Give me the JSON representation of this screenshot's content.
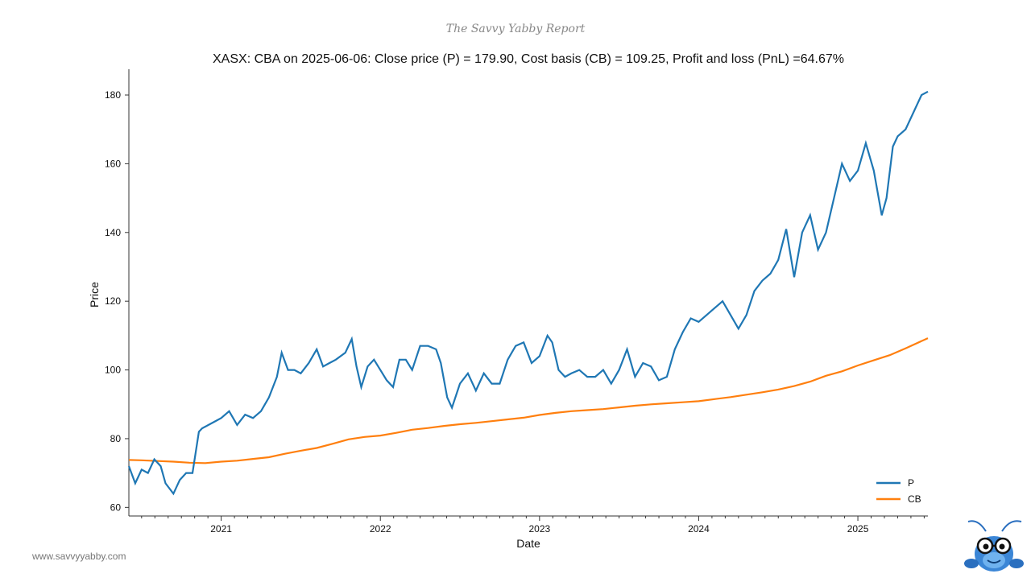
{
  "brand": {
    "title": "The Savvy Yabby Report"
  },
  "footer": {
    "url": "www.savvyyabby.com"
  },
  "colors": {
    "price": "#1f77b4",
    "cost_basis": "#ff7f0e",
    "axis": "#333333"
  },
  "icons": {
    "mascot": "yabby-mascot-icon"
  },
  "chart_data": {
    "type": "line",
    "title": "XASX: CBA on 2025-06-06: Close price (P) = 179.90, Cost basis (CB) = 109.25, Profit and loss (PnL) =64.67%",
    "xlabel": "Date",
    "ylabel": "Price",
    "xlim": [
      2020.42,
      2025.44
    ],
    "ylim": [
      57.5,
      187.5
    ],
    "yticks": [
      60,
      80,
      100,
      120,
      140,
      160,
      180
    ],
    "xticks": [
      {
        "value": 2021.0,
        "label": "2021"
      },
      {
        "value": 2022.0,
        "label": "2022"
      },
      {
        "value": 2023.0,
        "label": "2023"
      },
      {
        "value": 2024.0,
        "label": "2024"
      },
      {
        "value": 2025.0,
        "label": "2025"
      }
    ],
    "legend": {
      "position": "bottom-right"
    },
    "series": [
      {
        "name": "P",
        "x": [
          2020.42,
          2020.46,
          2020.5,
          2020.54,
          2020.58,
          2020.62,
          2020.65,
          2020.7,
          2020.74,
          2020.78,
          2020.82,
          2020.86,
          2020.88,
          2020.92,
          2020.96,
          2021.0,
          2021.05,
          2021.1,
          2021.15,
          2021.2,
          2021.25,
          2021.3,
          2021.35,
          2021.38,
          2021.42,
          2021.46,
          2021.5,
          2021.55,
          2021.6,
          2021.64,
          2021.68,
          2021.72,
          2021.78,
          2021.82,
          2021.85,
          2021.88,
          2021.92,
          2021.96,
          2022.0,
          2022.04,
          2022.08,
          2022.12,
          2022.16,
          2022.2,
          2022.25,
          2022.3,
          2022.35,
          2022.38,
          2022.42,
          2022.45,
          2022.5,
          2022.55,
          2022.6,
          2022.65,
          2022.7,
          2022.75,
          2022.8,
          2022.85,
          2022.9,
          2022.95,
          2023.0,
          2023.05,
          2023.08,
          2023.12,
          2023.16,
          2023.2,
          2023.25,
          2023.3,
          2023.35,
          2023.4,
          2023.45,
          2023.5,
          2023.55,
          2023.6,
          2023.65,
          2023.7,
          2023.75,
          2023.8,
          2023.85,
          2023.9,
          2023.95,
          2024.0,
          2024.05,
          2024.1,
          2024.15,
          2024.2,
          2024.25,
          2024.3,
          2024.35,
          2024.4,
          2024.45,
          2024.5,
          2024.55,
          2024.6,
          2024.65,
          2024.7,
          2024.75,
          2024.8,
          2024.85,
          2024.9,
          2024.95,
          2025.0,
          2025.05,
          2025.1,
          2025.15,
          2025.18,
          2025.22,
          2025.25,
          2025.3,
          2025.35,
          2025.4,
          2025.44
        ],
        "y": [
          72,
          67,
          71,
          70,
          74,
          72,
          67,
          64,
          68,
          70,
          70,
          82,
          83,
          84,
          85,
          86,
          88,
          84,
          87,
          86,
          88,
          92,
          98,
          105,
          100,
          100,
          99,
          102,
          106,
          101,
          102,
          103,
          105,
          109,
          101,
          95,
          101,
          103,
          100,
          97,
          95,
          103,
          103,
          100,
          107,
          107,
          106,
          102,
          92,
          89,
          96,
          99,
          94,
          99,
          96,
          96,
          103,
          107,
          108,
          102,
          104,
          110,
          108,
          100,
          98,
          99,
          100,
          98,
          98,
          100,
          96,
          100,
          106,
          98,
          102,
          101,
          97,
          98,
          106,
          111,
          115,
          114,
          116,
          118,
          120,
          116,
          112,
          116,
          123,
          126,
          128,
          132,
          141,
          127,
          140,
          145,
          135,
          140,
          150,
          160,
          155,
          158,
          166,
          158,
          145,
          150,
          165,
          168,
          170,
          175,
          180,
          181
        ]
      },
      {
        "name": "CB",
        "x": [
          2020.42,
          2020.5,
          2020.6,
          2020.7,
          2020.8,
          2020.9,
          2021.0,
          2021.1,
          2021.2,
          2021.3,
          2021.4,
          2021.5,
          2021.6,
          2021.7,
          2021.8,
          2021.9,
          2022.0,
          2022.1,
          2022.2,
          2022.3,
          2022.4,
          2022.5,
          2022.6,
          2022.7,
          2022.8,
          2022.9,
          2023.0,
          2023.1,
          2023.2,
          2023.3,
          2023.4,
          2023.5,
          2023.6,
          2023.7,
          2023.8,
          2023.9,
          2024.0,
          2024.1,
          2024.2,
          2024.3,
          2024.4,
          2024.5,
          2024.6,
          2024.7,
          2024.8,
          2024.9,
          2025.0,
          2025.1,
          2025.2,
          2025.3,
          2025.44
        ],
        "y": [
          73.8,
          73.7,
          73.5,
          73.3,
          73.0,
          72.9,
          73.3,
          73.6,
          74.1,
          74.6,
          75.6,
          76.5,
          77.3,
          78.5,
          79.8,
          80.5,
          80.9,
          81.7,
          82.6,
          83.1,
          83.7,
          84.2,
          84.6,
          85.1,
          85.6,
          86.1,
          86.9,
          87.5,
          88.0,
          88.3,
          88.6,
          89.1,
          89.6,
          90.0,
          90.3,
          90.6,
          90.9,
          91.5,
          92.1,
          92.8,
          93.5,
          94.3,
          95.3,
          96.6,
          98.3,
          99.6,
          101.3,
          102.8,
          104.3,
          106.3,
          109.25
        ]
      }
    ]
  }
}
